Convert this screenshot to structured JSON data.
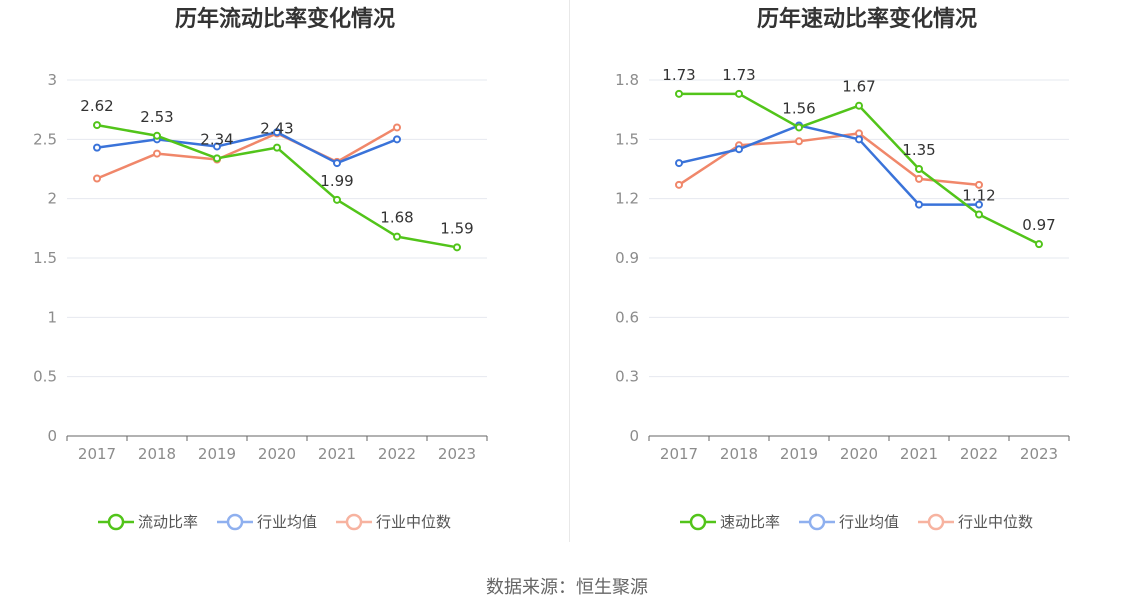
{
  "source": "数据来源：恒生聚源",
  "colors": {
    "series1": "#52c41a",
    "series2": "#3a73d9",
    "series3": "#f0876a",
    "legend2": "#8fb0ef",
    "legend3": "#f7b3a0",
    "grid": "#e6e8ef",
    "axis": "#666666"
  },
  "chart_data": [
    {
      "type": "line",
      "title": "历年流动比率变化情况",
      "categories": [
        "2017",
        "2018",
        "2019",
        "2020",
        "2021",
        "2022",
        "2023"
      ],
      "yticks": [
        "0",
        "0.5",
        "1",
        "1.5",
        "2",
        "2.5",
        "3"
      ],
      "ylim": [
        0,
        3
      ],
      "grid": true,
      "legend_position": "bottom",
      "series": [
        {
          "name": "流动比率",
          "values": [
            2.62,
            2.53,
            2.34,
            2.43,
            1.99,
            1.68,
            1.59
          ],
          "labels": [
            "2.62",
            "2.53",
            "2.34",
            "2.43",
            "1.99",
            "1.68",
            "1.59"
          ]
        },
        {
          "name": "行业均值",
          "values": [
            2.43,
            2.5,
            2.44,
            2.56,
            2.3,
            2.5,
            null
          ]
        },
        {
          "name": "行业中位数",
          "values": [
            2.17,
            2.38,
            2.33,
            2.55,
            2.31,
            2.6,
            null
          ]
        }
      ]
    },
    {
      "type": "line",
      "title": "历年速动比率变化情况",
      "categories": [
        "2017",
        "2018",
        "2019",
        "2020",
        "2021",
        "2022",
        "2023"
      ],
      "yticks": [
        "0",
        "0.3",
        "0.6",
        "0.9",
        "1.2",
        "1.5",
        "1.8"
      ],
      "ylim": [
        0,
        1.8
      ],
      "grid": true,
      "legend_position": "bottom",
      "series": [
        {
          "name": "速动比率",
          "values": [
            1.73,
            1.73,
            1.56,
            1.67,
            1.35,
            1.12,
            0.97
          ],
          "labels": [
            "1.73",
            "1.73",
            "1.56",
            "1.67",
            "1.35",
            "1.12",
            "0.97"
          ]
        },
        {
          "name": "行业均值",
          "values": [
            1.38,
            1.45,
            1.57,
            1.5,
            1.17,
            1.17,
            null
          ]
        },
        {
          "name": "行业中位数",
          "values": [
            1.27,
            1.47,
            1.49,
            1.53,
            1.3,
            1.27,
            null
          ]
        }
      ]
    }
  ]
}
